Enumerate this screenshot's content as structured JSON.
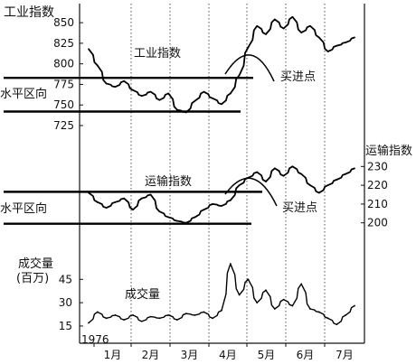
{
  "chart_data": {
    "type": "line",
    "year_label": "1976",
    "months": [
      "1月",
      "2月",
      "3月",
      "4月",
      "5月",
      "6月",
      "7月"
    ],
    "panels": [
      {
        "name": "industrial",
        "title": "工业指数",
        "series_label": "工业指数",
        "axis_side": "left",
        "ylim": [
          725,
          860
        ],
        "yticks": [
          725,
          750,
          775,
          800,
          825,
          850
        ],
        "horizontal_zone": {
          "label": "水平区向",
          "upper": 783,
          "lower": 742
        },
        "buy_point": {
          "label": "买进点",
          "week": 16
        },
        "weeks": [
          0,
          1,
          2,
          3,
          4,
          5,
          6,
          7,
          8,
          9,
          10,
          11,
          12,
          13,
          14,
          15,
          16,
          17,
          18,
          19,
          20,
          21,
          22,
          23,
          24,
          25,
          26,
          27,
          28,
          29,
          30
        ],
        "values": [
          818,
          798,
          776,
          772,
          779,
          768,
          761,
          766,
          756,
          764,
          744,
          741,
          755,
          766,
          758,
          751,
          764,
          786,
          820,
          846,
          836,
          854,
          843,
          857,
          838,
          846,
          832,
          815,
          822,
          826,
          832
        ]
      },
      {
        "name": "transport",
        "title": "运输指数",
        "series_label": "运输指数",
        "axis_side": "right",
        "ylim": [
          196,
          234
        ],
        "yticks": [
          200,
          210,
          220,
          230
        ],
        "horizontal_zone": {
          "label": "水平区向",
          "upper": 216.5,
          "lower": 199.5
        },
        "buy_point": {
          "label": "买进点",
          "week": 16
        },
        "weeks": [
          0,
          1,
          2,
          3,
          4,
          5,
          6,
          7,
          8,
          9,
          10,
          11,
          12,
          13,
          14,
          15,
          16,
          17,
          18,
          19,
          20,
          21,
          22,
          23,
          24,
          25,
          26,
          27,
          28,
          29,
          30
        ],
        "values": [
          216,
          211,
          208,
          211,
          213,
          207,
          213,
          215,
          206,
          203,
          201,
          200,
          203,
          207,
          210,
          209,
          212,
          220,
          224,
          227,
          222,
          229,
          225,
          230,
          226,
          220,
          216,
          220,
          223,
          226,
          229
        ]
      },
      {
        "name": "volume",
        "title": "成交量",
        "unit": "(百万)",
        "series_label": "成交量",
        "axis_side": "left",
        "ylim": [
          8,
          62
        ],
        "yticks": [
          15,
          30,
          45
        ],
        "weeks": [
          0,
          1,
          2,
          3,
          4,
          5,
          6,
          7,
          8,
          9,
          10,
          11,
          12,
          13,
          14,
          15,
          16,
          17,
          18,
          19,
          20,
          21,
          22,
          23,
          24,
          25,
          26,
          27,
          28,
          29,
          30
        ],
        "values": [
          17,
          24,
          20,
          22,
          19,
          22,
          18,
          21,
          20,
          22,
          19,
          23,
          22,
          24,
          20,
          25,
          55,
          35,
          45,
          30,
          38,
          26,
          32,
          28,
          42,
          26,
          24,
          20,
          16,
          22,
          28
        ]
      }
    ]
  }
}
